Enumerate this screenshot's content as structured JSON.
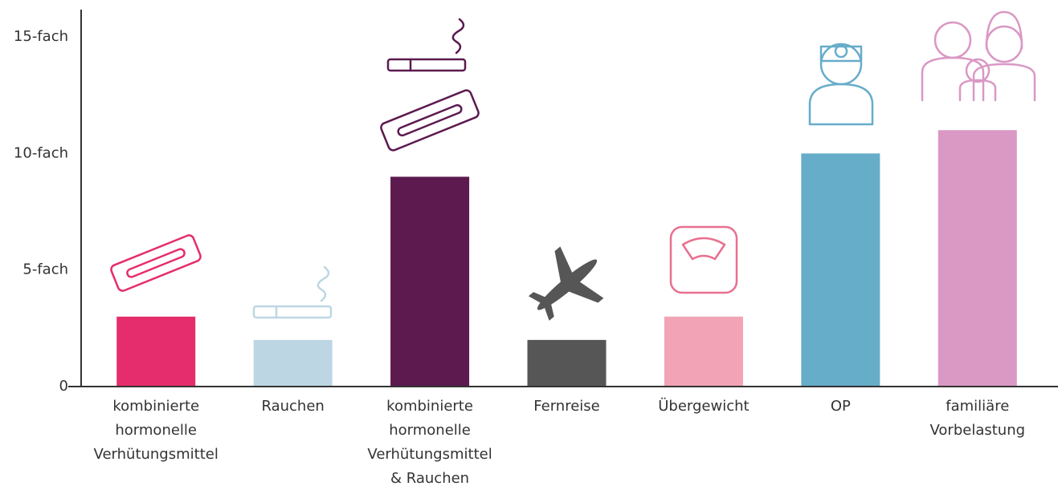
{
  "chart_data": {
    "type": "bar",
    "categories": [
      "kombinierte hormonelle Verhütungsmittel",
      "Rauchen",
      "kombinierte hormonelle Verhütungsmittel & Rauchen",
      "Fernreise",
      "Übergewicht",
      "OP",
      "familiäre Vorbelastung"
    ],
    "values": [
      3,
      2,
      9,
      2,
      3,
      10,
      11
    ],
    "colors": [
      "#e52d6e",
      "#bcd7e3",
      "#5c1a4f",
      "#565656",
      "#f2a3b5",
      "#66adc9",
      "#da98c4"
    ],
    "ylim": [
      0,
      15
    ],
    "yticks": [
      0,
      {
        "value": 5,
        "label": "5-fach"
      },
      {
        "value": 10,
        "label": "10-fach"
      },
      {
        "value": 15,
        "label": "15-fach"
      }
    ],
    "grid": false
  }
}
